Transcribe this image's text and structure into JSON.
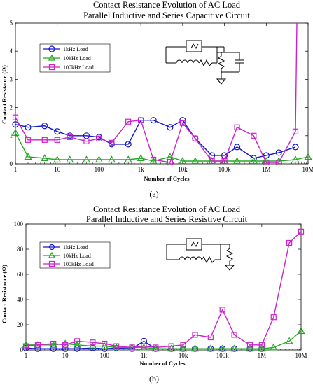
{
  "chart_data": [
    {
      "type": "line",
      "title": "Contact Resistance Evolution of AC Load",
      "subtitle": "Parallel Inductive and Series Capacitive Circuit",
      "xlabel": "Number of Cycles",
      "ylabel": "Contact Resistance (Ω)",
      "xscale": "log",
      "xlim": [
        1,
        10000000
      ],
      "ylim": [
        0,
        5
      ],
      "xticks": [
        1,
        10,
        100,
        1000,
        10000,
        100000,
        1000000,
        10000000
      ],
      "xtick_labels": [
        "1",
        "10",
        "100",
        "1k",
        "10k",
        "100k",
        "1M",
        "10M"
      ],
      "yticks": [
        0,
        1,
        2,
        3,
        4,
        5
      ],
      "ytick_labels": [
        "0",
        "1",
        "2",
        "3",
        "4",
        "5"
      ],
      "grid": false,
      "legend_position": "top-left",
      "caption": "(a)",
      "series": [
        {
          "name": "1kHz Load",
          "color": "#1515cc",
          "marker": "circle",
          "x": [
            1,
            2,
            5,
            10,
            20,
            50,
            100,
            200,
            500,
            1000,
            2000,
            5000,
            10000,
            20000,
            50000,
            100000,
            200000,
            500000,
            1000000,
            2000000,
            5000000
          ],
          "y": [
            1.4,
            1.3,
            1.35,
            1.15,
            1.0,
            1.0,
            0.95,
            0.7,
            0.7,
            1.55,
            1.55,
            1.3,
            1.55,
            0.9,
            0.3,
            0.3,
            0.6,
            0.2,
            0.3,
            0.4,
            0.6
          ]
        },
        {
          "name": "10kHz Load",
          "color": "#22aa22",
          "marker": "triangle",
          "x": [
            1,
            2,
            5,
            10,
            20,
            50,
            100,
            200,
            500,
            1000,
            2000,
            5000,
            10000,
            20000,
            50000,
            100000,
            200000,
            500000,
            1000000,
            2000000,
            5000000,
            10000000
          ],
          "y": [
            1.1,
            0.25,
            0.2,
            0.15,
            0.15,
            0.15,
            0.15,
            0.15,
            0.15,
            0.2,
            0.1,
            0.25,
            0.1,
            0.1,
            0.1,
            0.1,
            0.1,
            0.1,
            0.1,
            0.1,
            0.15,
            0.25
          ]
        },
        {
          "name": "100kHz Load",
          "color": "#cc22cc",
          "marker": "square",
          "x": [
            1,
            2,
            5,
            10,
            20,
            50,
            100,
            200,
            500,
            1000,
            2000,
            5000,
            10000,
            20000,
            50000,
            100000,
            200000,
            500000,
            1000000,
            2000000,
            5000000,
            5400000
          ],
          "y": [
            1.65,
            0.85,
            0.85,
            0.85,
            0.95,
            0.8,
            0.9,
            0.75,
            1.5,
            1.55,
            0.15,
            0.05,
            1.45,
            0.9,
            0.1,
            0.1,
            1.3,
            1.0,
            0.05,
            0.05,
            1.15,
            5.0
          ]
        }
      ]
    },
    {
      "type": "line",
      "title": "Contact Resistance Evolution of AC Load",
      "subtitle": "Parallel Inductive and Series Resistive Circuit",
      "xlabel": "Number of Cycles",
      "ylabel": "Contact Resistance (Ω)",
      "xscale": "log",
      "xlim": [
        1,
        10000000
      ],
      "ylim": [
        0,
        100
      ],
      "xticks": [
        1,
        10,
        100,
        1000,
        10000,
        100000,
        1000000,
        10000000
      ],
      "xtick_labels": [
        "1",
        "10",
        "100",
        "1k",
        "10k",
        "100k",
        "1M",
        "10M"
      ],
      "yticks": [
        0,
        20,
        40,
        60,
        80,
        100
      ],
      "ytick_labels": [
        "0",
        "20",
        "40",
        "60",
        "80",
        "100"
      ],
      "grid": false,
      "legend_position": "top-left",
      "caption": "(b)",
      "series": [
        {
          "name": "1kHz Load",
          "color": "#1515cc",
          "marker": "circle",
          "x": [
            1,
            2,
            5,
            10,
            20,
            50,
            100,
            200,
            500,
            1000,
            2000,
            5000,
            10000,
            20000,
            50000,
            100000,
            200000,
            500000,
            1000000
          ],
          "y": [
            1.5,
            1.0,
            1.0,
            1.0,
            1.0,
            1.5,
            1.0,
            1.5,
            1.0,
            7.0,
            1.0,
            1.0,
            1.0,
            1.0,
            1.0,
            1.0,
            1.0,
            1.0,
            1.0
          ]
        },
        {
          "name": "10kHz Load",
          "color": "#22aa22",
          "marker": "triangle",
          "x": [
            1,
            2,
            5,
            10,
            20,
            50,
            100,
            200,
            500,
            1000,
            2000,
            5000,
            10000,
            20000,
            50000,
            100000,
            200000,
            500000,
            1000000,
            2000000,
            5000000,
            10000000
          ],
          "y": [
            4,
            4,
            4,
            5,
            4,
            3,
            3,
            2,
            2,
            2,
            1,
            1,
            1,
            1,
            1,
            1,
            1,
            1,
            1,
            2,
            7,
            15
          ]
        },
        {
          "name": "100kHz Load",
          "color": "#cc22cc",
          "marker": "square",
          "x": [
            1,
            2,
            5,
            10,
            20,
            50,
            100,
            200,
            500,
            1000,
            2000,
            5000,
            10000,
            20000,
            50000,
            100000,
            200000,
            500000,
            1000000,
            2000000,
            5000000,
            10000000
          ],
          "y": [
            3,
            4,
            5,
            4,
            7,
            6,
            5,
            3,
            2,
            3,
            2,
            3,
            4,
            12,
            10,
            32,
            12,
            4,
            4,
            26,
            85,
            94
          ]
        }
      ]
    }
  ]
}
